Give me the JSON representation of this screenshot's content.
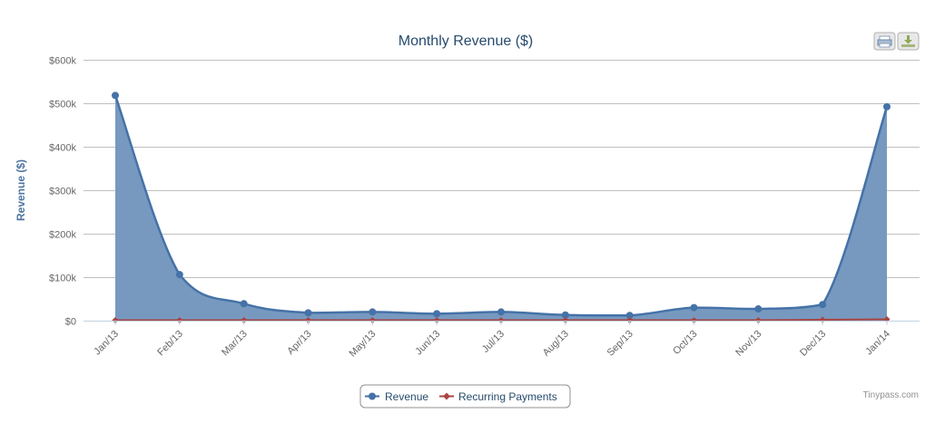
{
  "chart_data": {
    "type": "area",
    "title": "Monthly Revenue ($)",
    "ylabel": "Revenue ($)",
    "xlabel": "",
    "categories": [
      "Jan/13",
      "Feb/13",
      "Mar/13",
      "Apr/13",
      "May/13",
      "Jun/13",
      "Jul/13",
      "Aug/13",
      "Sep/13",
      "Oct/13",
      "Nov/13",
      "Dec/13",
      "Jan/14"
    ],
    "ylim": [
      0,
      600000
    ],
    "yticks": [
      0,
      100000,
      200000,
      300000,
      400000,
      500000,
      600000
    ],
    "ytick_labels": [
      "$0",
      "$100k",
      "$200k",
      "$300k",
      "$400k",
      "$500k",
      "$600k"
    ],
    "grid": true,
    "legend_position": "bottom-center",
    "series": [
      {
        "name": "Revenue",
        "kind": "area",
        "color": "#4572a7",
        "fill_color": "#7799c0",
        "marker": "circle",
        "values": [
          518000,
          106000,
          39000,
          18000,
          20000,
          16000,
          20000,
          13000,
          12000,
          30000,
          27000,
          37000,
          492000
        ]
      },
      {
        "name": "Recurring Payments",
        "kind": "line",
        "color": "#aa4643",
        "marker": "diamond",
        "values": [
          1000,
          1000,
          1000,
          1000,
          1000,
          1000,
          1000,
          1000,
          1000,
          1000,
          1000,
          2000,
          3000
        ]
      }
    ]
  },
  "credits": "Tinypass.com",
  "toolbar": {
    "print_icon": "printer-icon",
    "export_icon": "download-icon"
  }
}
